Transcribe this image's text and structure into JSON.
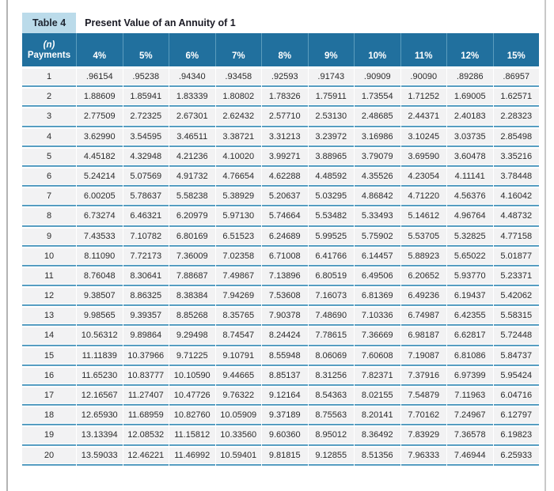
{
  "colors": {
    "header_teal": "#21709e",
    "header_separator": "#5b9cbd",
    "tab_blue": "#bbdbea",
    "row_gray": "#f2f2f3",
    "row_line_blue": "#569dc1",
    "frame_gray": "#b4b4b4"
  },
  "table": {
    "tab_label": "Table 4",
    "title": "Present Value of an Annuity of 1",
    "header": {
      "n_label": "(n)",
      "payments_label": "Payments",
      "rates": [
        "4%",
        "5%",
        "6%",
        "7%",
        "8%",
        "9%",
        "10%",
        "11%",
        "12%",
        "15%"
      ]
    },
    "rows": [
      {
        "n": "1",
        "values": [
          ".96154",
          ".95238",
          ".94340",
          ".93458",
          ".92593",
          ".91743",
          ".90909",
          ".90090",
          ".89286",
          ".86957"
        ]
      },
      {
        "n": "2",
        "values": [
          "1.88609",
          "1.85941",
          "1.83339",
          "1.80802",
          "1.78326",
          "1.75911",
          "1.73554",
          "1.71252",
          "1.69005",
          "1.62571"
        ]
      },
      {
        "n": "3",
        "values": [
          "2.77509",
          "2.72325",
          "2.67301",
          "2.62432",
          "2.57710",
          "2.53130",
          "2.48685",
          "2.44371",
          "2.40183",
          "2.28323"
        ]
      },
      {
        "n": "4",
        "values": [
          "3.62990",
          "3.54595",
          "3.46511",
          "3.38721",
          "3.31213",
          "3.23972",
          "3.16986",
          "3.10245",
          "3.03735",
          "2.85498"
        ]
      },
      {
        "n": "5",
        "values": [
          "4.45182",
          "4.32948",
          "4.21236",
          "4.10020",
          "3.99271",
          "3.88965",
          "3.79079",
          "3.69590",
          "3.60478",
          "3.35216"
        ]
      },
      {
        "n": "6",
        "values": [
          "5.24214",
          "5.07569",
          "4.91732",
          "4.76654",
          "4.62288",
          "4.48592",
          "4.35526",
          "4.23054",
          "4.11141",
          "3.78448"
        ]
      },
      {
        "n": "7",
        "values": [
          "6.00205",
          "5.78637",
          "5.58238",
          "5.38929",
          "5.20637",
          "5.03295",
          "4.86842",
          "4.71220",
          "4.56376",
          "4.16042"
        ]
      },
      {
        "n": "8",
        "values": [
          "6.73274",
          "6.46321",
          "6.20979",
          "5.97130",
          "5.74664",
          "5.53482",
          "5.33493",
          "5.14612",
          "4.96764",
          "4.48732"
        ]
      },
      {
        "n": "9",
        "values": [
          "7.43533",
          "7.10782",
          "6.80169",
          "6.51523",
          "6.24689",
          "5.99525",
          "5.75902",
          "5.53705",
          "5.32825",
          "4.77158"
        ]
      },
      {
        "n": "10",
        "values": [
          "8.11090",
          "7.72173",
          "7.36009",
          "7.02358",
          "6.71008",
          "6.41766",
          "6.14457",
          "5.88923",
          "5.65022",
          "5.01877"
        ]
      },
      {
        "n": "11",
        "values": [
          "8.76048",
          "8.30641",
          "7.88687",
          "7.49867",
          "7.13896",
          "6.80519",
          "6.49506",
          "6.20652",
          "5.93770",
          "5.23371"
        ]
      },
      {
        "n": "12",
        "values": [
          "9.38507",
          "8.86325",
          "8.38384",
          "7.94269",
          "7.53608",
          "7.16073",
          "6.81369",
          "6.49236",
          "6.19437",
          "5.42062"
        ]
      },
      {
        "n": "13",
        "values": [
          "9.98565",
          "9.39357",
          "8.85268",
          "8.35765",
          "7.90378",
          "7.48690",
          "7.10336",
          "6.74987",
          "6.42355",
          "5.58315"
        ]
      },
      {
        "n": "14",
        "values": [
          "10.56312",
          "9.89864",
          "9.29498",
          "8.74547",
          "8.24424",
          "7.78615",
          "7.36669",
          "6.98187",
          "6.62817",
          "5.72448"
        ]
      },
      {
        "n": "15",
        "values": [
          "11.11839",
          "10.37966",
          "9.71225",
          "9.10791",
          "8.55948",
          "8.06069",
          "7.60608",
          "7.19087",
          "6.81086",
          "5.84737"
        ]
      },
      {
        "n": "16",
        "values": [
          "11.65230",
          "10.83777",
          "10.10590",
          "9.44665",
          "8.85137",
          "8.31256",
          "7.82371",
          "7.37916",
          "6.97399",
          "5.95424"
        ]
      },
      {
        "n": "17",
        "values": [
          "12.16567",
          "11.27407",
          "10.47726",
          "9.76322",
          "9.12164",
          "8.54363",
          "8.02155",
          "7.54879",
          "7.11963",
          "6.04716"
        ]
      },
      {
        "n": "18",
        "values": [
          "12.65930",
          "11.68959",
          "10.82760",
          "10.05909",
          "9.37189",
          "8.75563",
          "8.20141",
          "7.70162",
          "7.24967",
          "6.12797"
        ]
      },
      {
        "n": "19",
        "values": [
          "13.13394",
          "12.08532",
          "11.15812",
          "10.33560",
          "9.60360",
          "8.95012",
          "8.36492",
          "7.83929",
          "7.36578",
          "6.19823"
        ]
      },
      {
        "n": "20",
        "values": [
          "13.59033",
          "12.46221",
          "11.46992",
          "10.59401",
          "9.81815",
          "9.12855",
          "8.51356",
          "7.96333",
          "7.46944",
          "6.25933"
        ]
      }
    ]
  }
}
